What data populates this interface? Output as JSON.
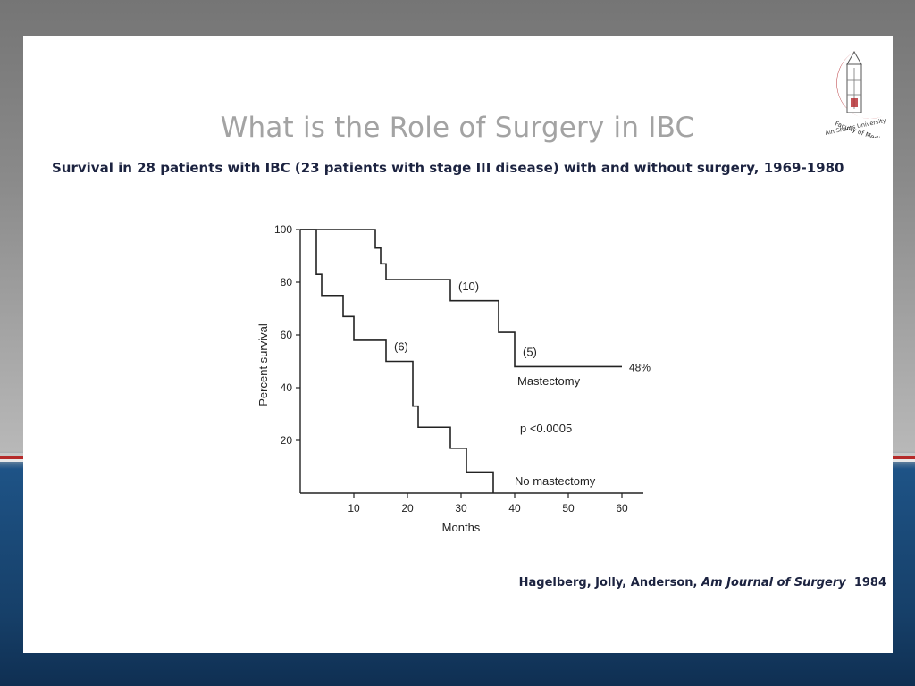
{
  "slide": {
    "title": "What is the Role of Surgery in IBC",
    "subtitle": "Survival in 28 patients with IBC (23 patients with stage III disease) with and without surgery, 1969-1980",
    "citation": {
      "authors": "Hagelberg, Jolly, Anderson,",
      "journal": "Am Journal of Surgery",
      "year": "1984"
    },
    "logo": {
      "text_top": "Faculty of Medicine",
      "text_bottom": "Ain Shams University"
    }
  },
  "colors": {
    "title": "#a3a3a3",
    "text": "#1c2340",
    "logo_red": "#b3282d",
    "background_blue": "#1e5386",
    "band_red": "#b52a2a"
  },
  "chart_data": {
    "type": "line",
    "step": true,
    "xlabel": "Months",
    "ylabel": "Percent survival",
    "xlim": [
      0,
      64
    ],
    "ylim": [
      0,
      100
    ],
    "xticks": [
      10,
      20,
      30,
      40,
      50,
      60
    ],
    "yticks": [
      20,
      40,
      60,
      80,
      100
    ],
    "grid": false,
    "series": [
      {
        "name": "Mastectomy",
        "end_label": "48%",
        "x": [
          0,
          14,
          15,
          16,
          28,
          37,
          40,
          60
        ],
        "y": [
          100,
          93,
          87,
          81,
          73,
          61,
          48,
          48
        ]
      },
      {
        "name": "No mastectomy",
        "x": [
          0,
          3,
          4,
          8,
          10,
          16,
          21,
          22,
          28,
          31,
          36
        ],
        "y": [
          100,
          83,
          75,
          67,
          58,
          50,
          33,
          25,
          17,
          8,
          0
        ]
      }
    ],
    "annotations": [
      {
        "text": "(10)",
        "x": 29.5,
        "y": 77
      },
      {
        "text": "(5)",
        "x": 41.5,
        "y": 52
      },
      {
        "text": "(6)",
        "x": 17.5,
        "y": 54
      },
      {
        "text": "Mastectomy",
        "x": 40.5,
        "y": 41
      },
      {
        "text": "p <0.0005",
        "x": 41,
        "y": 23
      },
      {
        "text": "No mastectomy",
        "x": 40,
        "y": 3
      }
    ]
  }
}
